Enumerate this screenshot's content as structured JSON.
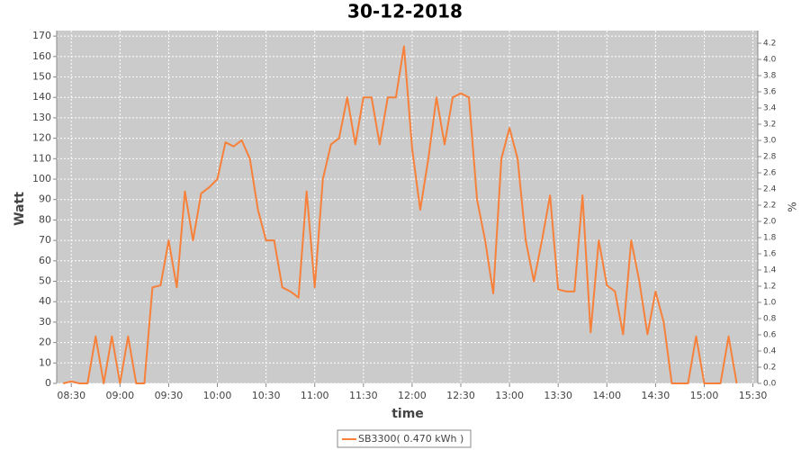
{
  "chart_data": {
    "type": "line",
    "title": "30-12-2018",
    "x_label": "time",
    "y_label": "Watt",
    "y2_label": "%",
    "x": [
      "08:25",
      "08:30",
      "08:35",
      "08:40",
      "08:45",
      "08:50",
      "08:55",
      "09:00",
      "09:05",
      "09:10",
      "09:15",
      "09:20",
      "09:25",
      "09:30",
      "09:35",
      "09:40",
      "09:45",
      "09:50",
      "09:55",
      "10:00",
      "10:05",
      "10:10",
      "10:15",
      "10:20",
      "10:25",
      "10:30",
      "10:35",
      "10:40",
      "10:45",
      "10:50",
      "10:55",
      "11:00",
      "11:05",
      "11:10",
      "11:15",
      "11:20",
      "11:25",
      "11:30",
      "11:35",
      "11:40",
      "11:45",
      "11:50",
      "11:55",
      "12:00",
      "12:05",
      "12:10",
      "12:15",
      "12:20",
      "12:25",
      "12:30",
      "12:35",
      "12:40",
      "12:45",
      "12:50",
      "12:55",
      "13:00",
      "13:05",
      "13:10",
      "13:15",
      "13:20",
      "13:25",
      "13:30",
      "13:35",
      "13:40",
      "13:45",
      "13:50",
      "13:55",
      "14:00",
      "14:05",
      "14:10",
      "14:15",
      "14:20",
      "14:25",
      "14:30",
      "14:35",
      "14:40",
      "14:45",
      "14:50",
      "14:55",
      "15:00",
      "15:05",
      "15:10",
      "15:15",
      "15:20"
    ],
    "series": [
      {
        "name": "SB3300( 0.470 kWh )",
        "color": "#f7813a",
        "values": [
          0,
          1,
          0,
          0,
          23,
          0,
          23,
          0,
          23,
          0,
          0,
          47,
          48,
          70,
          47,
          94,
          70,
          93,
          96,
          100,
          118,
          116,
          119,
          110,
          85,
          70,
          70,
          47,
          45,
          42,
          94,
          47,
          100,
          117,
          120,
          140,
          117,
          140,
          140,
          117,
          140,
          140,
          165,
          115,
          85,
          110,
          140,
          117,
          140,
          142,
          140,
          90,
          70,
          44,
          110,
          125,
          110,
          70,
          50,
          70,
          92,
          46,
          45,
          45,
          92,
          25,
          70,
          48,
          45,
          24,
          70,
          50,
          24,
          45,
          30,
          0,
          0,
          0,
          23,
          0,
          0,
          0,
          23,
          0
        ]
      }
    ],
    "xlim": [
      "08:21",
      "15:33"
    ],
    "xticks": [
      "08:30",
      "09:00",
      "09:30",
      "10:00",
      "10:30",
      "11:00",
      "11:30",
      "12:00",
      "12:30",
      "13:00",
      "13:30",
      "14:00",
      "14:30",
      "15:00",
      "15:30"
    ],
    "ylim": [
      0,
      172.7
    ],
    "yticks": [
      0,
      10,
      20,
      30,
      40,
      50,
      60,
      70,
      80,
      90,
      100,
      110,
      120,
      130,
      140,
      150,
      160,
      170
    ],
    "y2lim": [
      0,
      4.356
    ],
    "y2ticks": [
      {
        "value": 0,
        "label": "0.0"
      },
      0.2,
      0.4,
      0.6,
      0.8,
      {
        "value": 1,
        "label": "1.0"
      },
      1.2,
      1.4,
      1.6,
      1.8,
      {
        "value": 2,
        "label": "2.0"
      },
      2.2,
      2.4,
      2.6,
      2.8,
      {
        "value": 3,
        "label": "3.0"
      },
      3.2,
      3.4,
      3.6,
      3.8,
      {
        "value": 4,
        "label": "4.0"
      },
      4.2
    ],
    "grid": true,
    "legend": "bottom"
  }
}
